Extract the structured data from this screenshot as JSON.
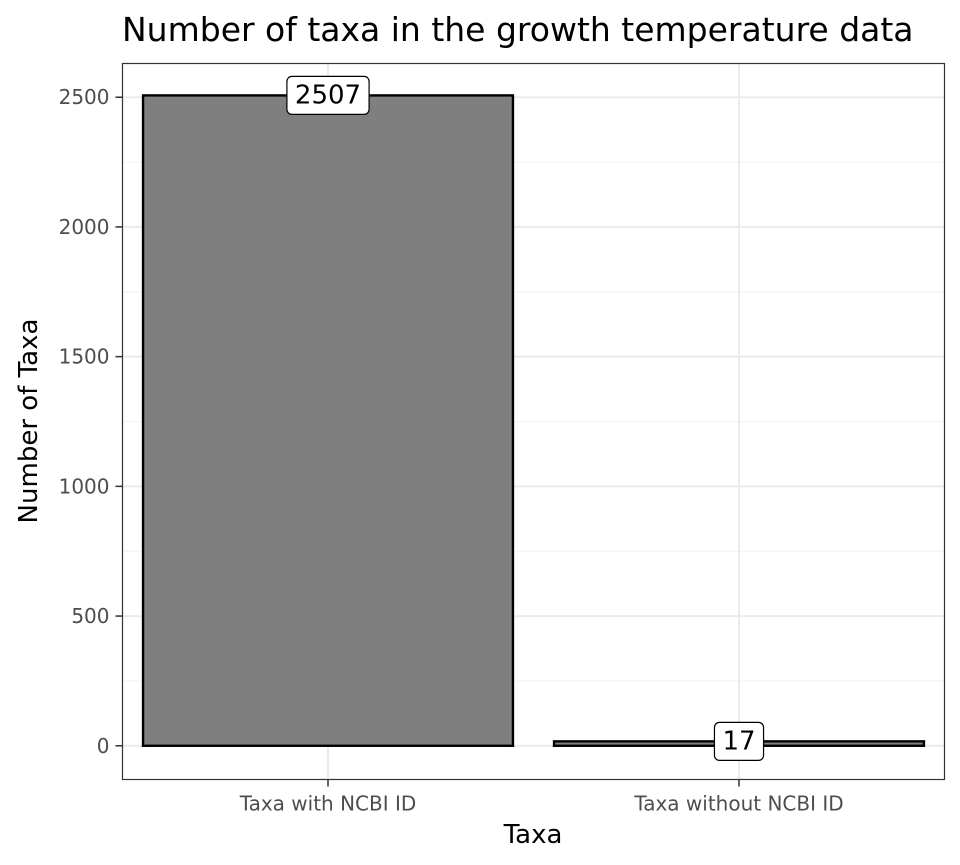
{
  "chart_data": {
    "type": "bar",
    "title": "Number of taxa in the growth temperature data",
    "xlabel": "Taxa",
    "ylabel": "Number of Taxa",
    "categories": [
      "Taxa with NCBI ID",
      "Taxa without NCBI ID"
    ],
    "values": [
      2507,
      17
    ],
    "data_labels": [
      "2507",
      "17"
    ],
    "ylim": [
      -130,
      2630
    ],
    "yticks": [
      0,
      500,
      1000,
      1500,
      2000,
      2500
    ],
    "ytick_labels": [
      "0",
      "500",
      "1000",
      "1500",
      "2000",
      "2500"
    ],
    "grid": true,
    "legend": "none",
    "colors": {
      "bar_fill": "#7f7f7f",
      "bar_stroke": "#000000",
      "grid_major": "#ebebeb",
      "grid_minor": "#f3f3f3",
      "panel_border": "#333333",
      "label_bg": "#ffffff"
    }
  }
}
